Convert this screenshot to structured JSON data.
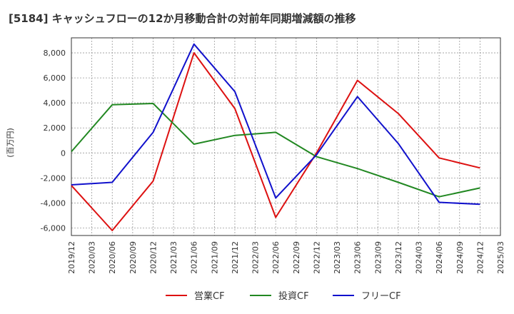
{
  "chart_data": {
    "type": "line",
    "title": "[5184]  キャッシュフローの12か月移動合計の対前年同期増減額の推移",
    "ylabel": "(百万円)",
    "xlabel": "",
    "ylim": [
      -6600,
      9200
    ],
    "yticks": [
      8000,
      6000,
      4000,
      2000,
      0,
      -2000,
      -4000,
      -6000
    ],
    "ytick_labels": [
      "8,000",
      "6,000",
      "4,000",
      "2,000",
      "0",
      "-2,000",
      "-4,000",
      "-6,000"
    ],
    "xtick_labels": [
      "2019/12",
      "2020/03",
      "2020/06",
      "2020/09",
      "2020/12",
      "2021/03",
      "2021/06",
      "2021/09",
      "2021/12",
      "2022/03",
      "2022/06",
      "2022/09",
      "2022/12",
      "2023/03",
      "2023/06",
      "2023/09",
      "2023/12",
      "2024/03",
      "2024/06",
      "2024/09",
      "2024/12",
      "2025/03"
    ],
    "grid": true,
    "legend_position": "bottom-center",
    "series": [
      {
        "name": "営業CF",
        "color": "#dd1111",
        "points": [
          [
            "2019/12",
            -2600
          ],
          [
            "2020/06",
            -6200
          ],
          [
            "2020/12",
            -2250
          ],
          [
            "2021/06",
            8000
          ],
          [
            "2021/12",
            3550
          ],
          [
            "2022/06",
            -5150
          ],
          [
            "2022/12",
            0
          ],
          [
            "2023/06",
            5800
          ],
          [
            "2023/12",
            3150
          ],
          [
            "2024/06",
            -400
          ],
          [
            "2024/12",
            -1200
          ]
        ]
      },
      {
        "name": "投資CF",
        "color": "#228822",
        "points": [
          [
            "2019/12",
            100
          ],
          [
            "2020/06",
            3850
          ],
          [
            "2020/12",
            3950
          ],
          [
            "2021/06",
            700
          ],
          [
            "2021/12",
            1400
          ],
          [
            "2022/06",
            1650
          ],
          [
            "2022/12",
            -300
          ],
          [
            "2023/06",
            -1250
          ],
          [
            "2023/12",
            -2350
          ],
          [
            "2024/06",
            -3500
          ],
          [
            "2024/12",
            -2800
          ]
        ]
      },
      {
        "name": "フリーCF",
        "color": "#1111cc",
        "points": [
          [
            "2019/12",
            -2550
          ],
          [
            "2020/06",
            -2350
          ],
          [
            "2020/12",
            1650
          ],
          [
            "2021/06",
            8700
          ],
          [
            "2021/12",
            4900
          ],
          [
            "2022/06",
            -3600
          ],
          [
            "2022/12",
            -150
          ],
          [
            "2023/06",
            4500
          ],
          [
            "2023/12",
            750
          ],
          [
            "2024/06",
            -3950
          ],
          [
            "2024/12",
            -4100
          ]
        ]
      }
    ]
  }
}
